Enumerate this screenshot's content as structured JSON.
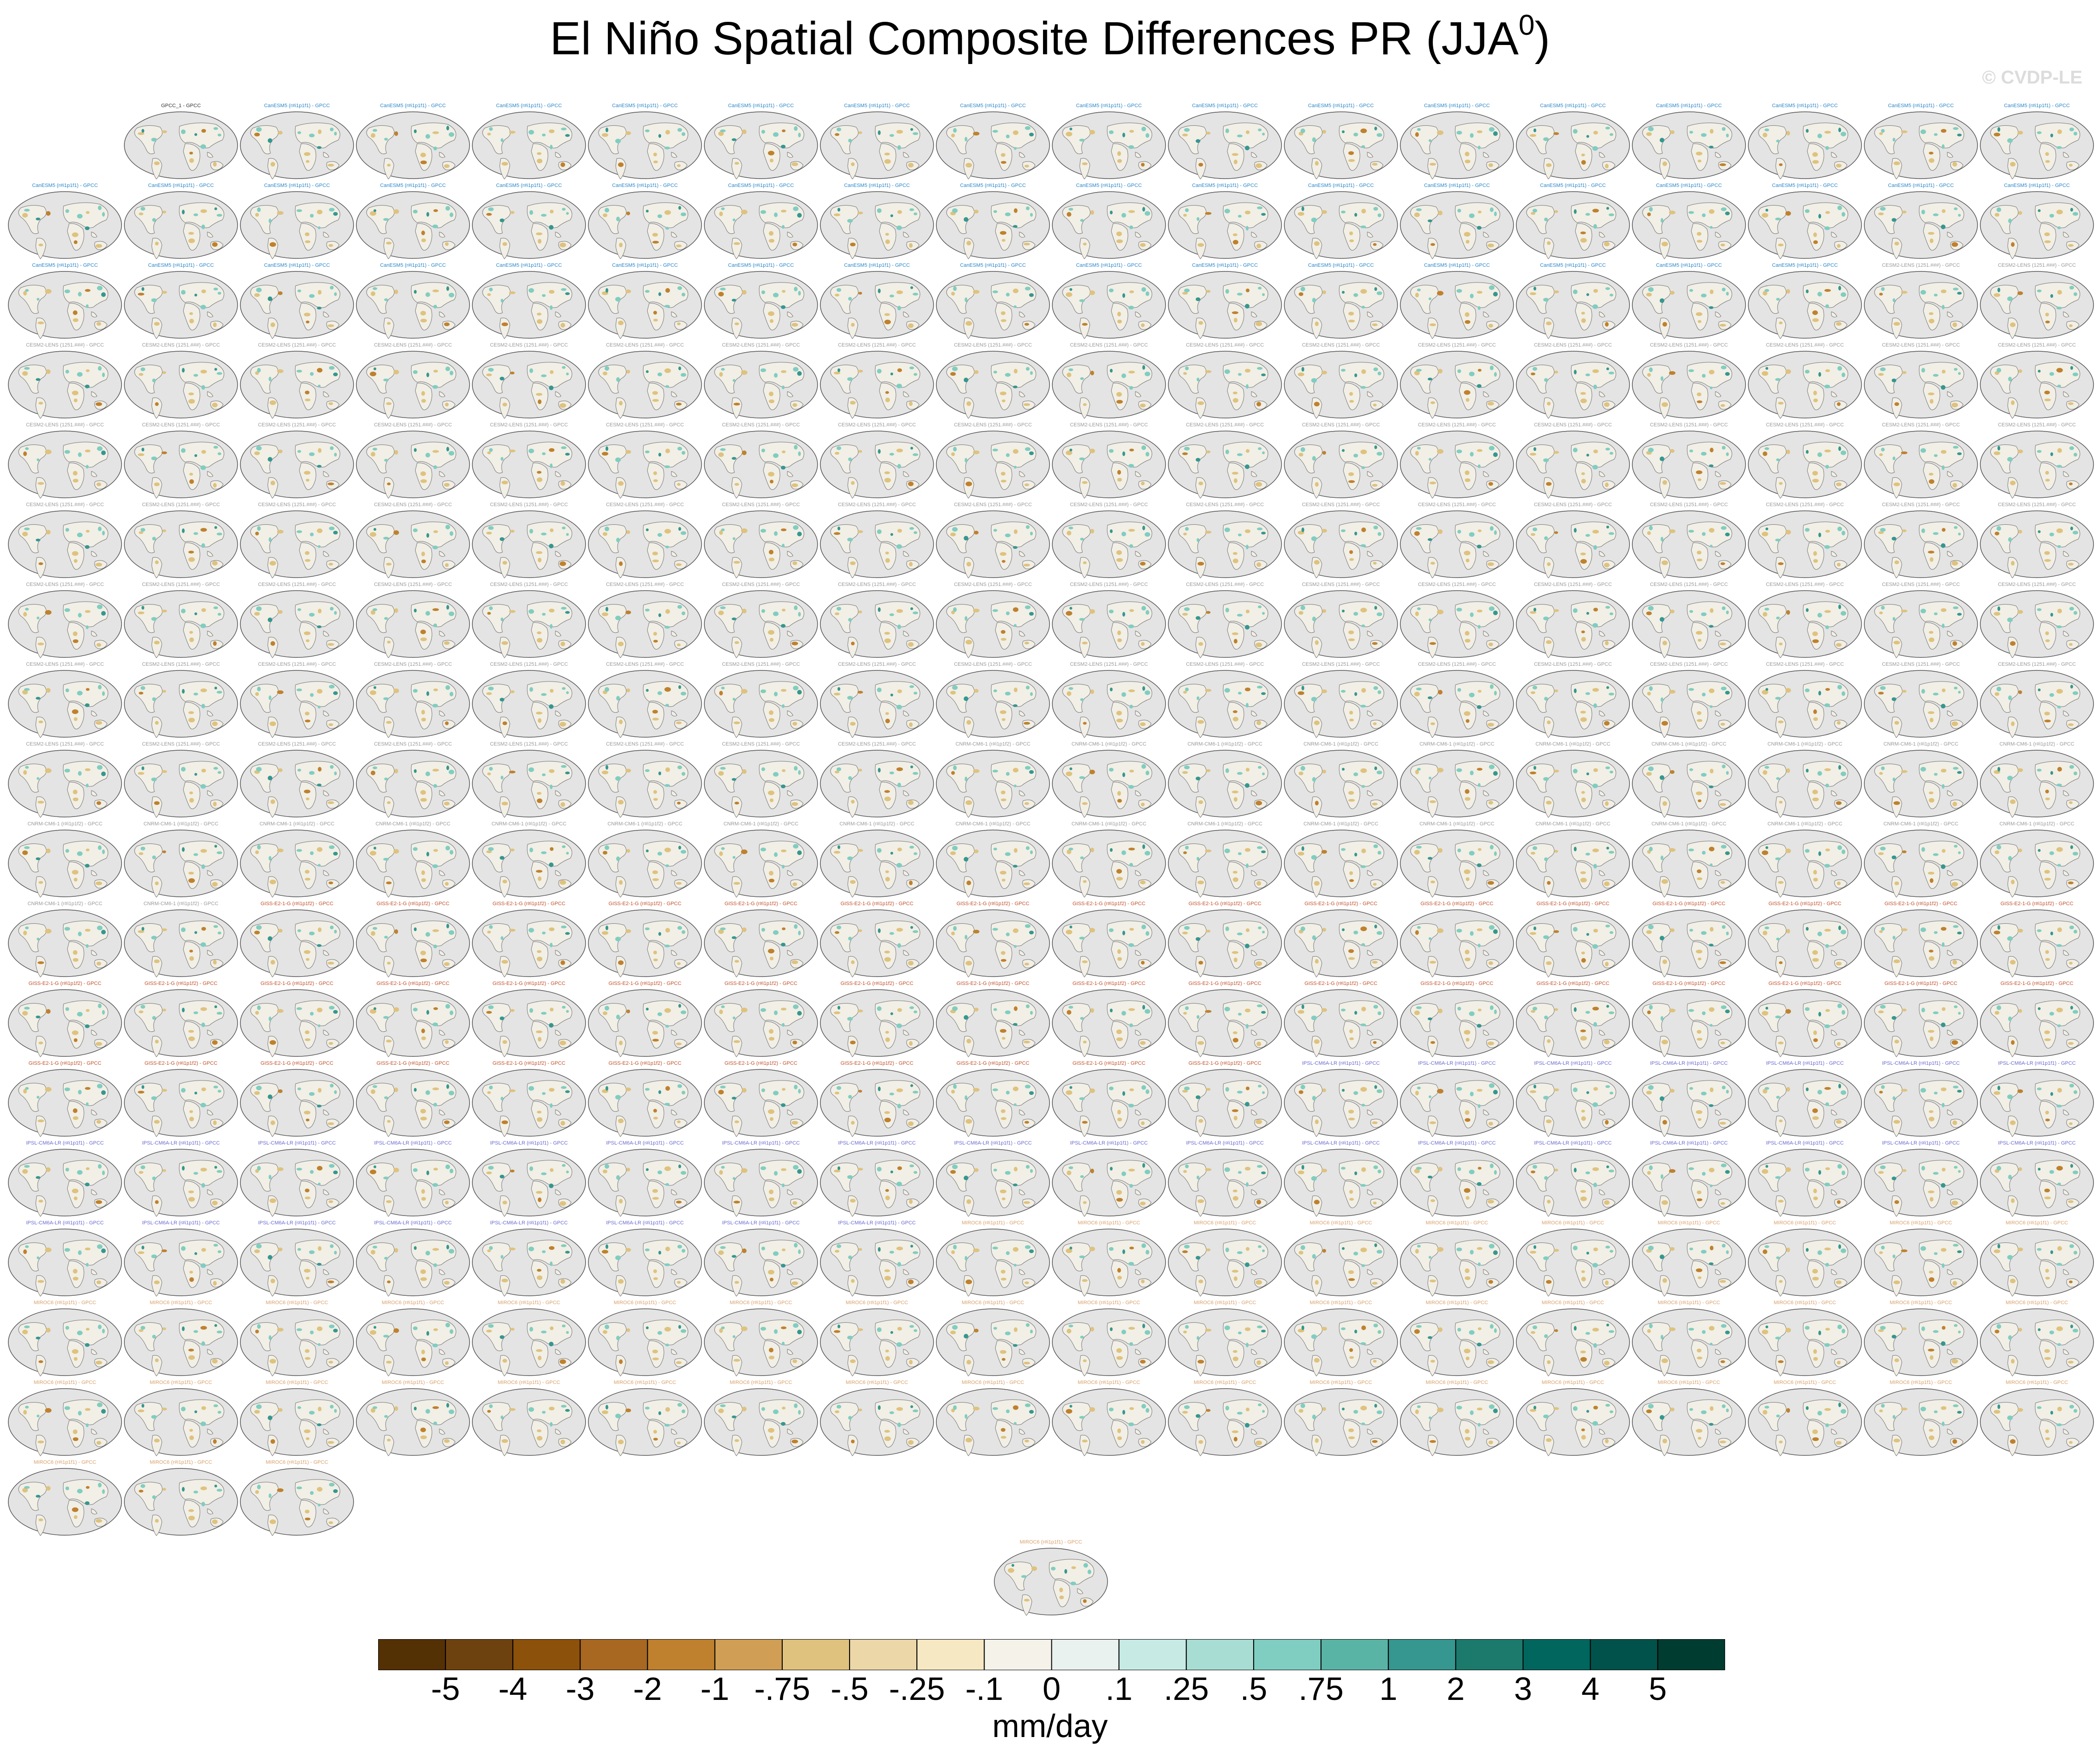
{
  "figure": {
    "title_main": "El Niño Spatial Composite Differences PR (JJA",
    "title_sup": "0",
    "title_close": ")",
    "watermark": "© CVDP-LE"
  },
  "panels": {
    "first_label": "GPCC_1 - GPCC",
    "groups": [
      {
        "label": "CanESM5 (r#i1p1f1) - GPCC",
        "count": 50,
        "color": "#2a86c8"
      },
      {
        "label": "CESM2-LENS (1251.###) - GPCC",
        "count": 100,
        "color": "#9a9a9a"
      },
      {
        "label": "CNRM-CM6-1 (r#i1p1f2) - GPCC",
        "count": 30,
        "color": "#9a9a9a"
      },
      {
        "label": "GISS-E2-1-G (r#i1p1f2) - GPCC",
        "count": 45,
        "color": "#c0502a"
      },
      {
        "label": "IPSL-CM6A-LR (r#i1p1f1) - GPCC",
        "count": 33,
        "color": "#6a6ad0"
      },
      {
        "label": "MIROC6 (r#i1p1f1) - GPCC",
        "count": 50,
        "color": "#d9a06a"
      }
    ]
  },
  "colorbar": {
    "colors": [
      "#543005",
      "#6e420f",
      "#8c510a",
      "#a86822",
      "#bf812d",
      "#d09e55",
      "#dfc27d",
      "#ecd7a8",
      "#f6e8c3",
      "#f5f2ea",
      "#eaf2f0",
      "#c7eae5",
      "#a8ddd4",
      "#80cdc1",
      "#5ab4a6",
      "#35978f",
      "#1b7a6c",
      "#01665e",
      "#01524a",
      "#003c30"
    ],
    "tick_labels": [
      "-5",
      "-4",
      "-3",
      "-2",
      "-1",
      "-.75",
      "-.5",
      "-.25",
      "-.1",
      "0",
      ".1",
      ".25",
      ".5",
      ".75",
      "1",
      "2",
      "3",
      "4",
      "5"
    ],
    "units": "mm/day"
  }
}
